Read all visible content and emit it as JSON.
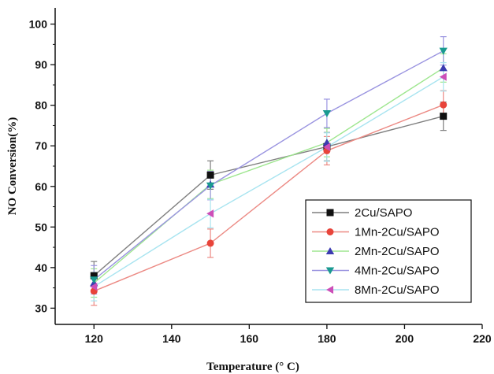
{
  "chart_data": {
    "type": "line",
    "xlabel": "Temperature (° C)",
    "ylabel": "NO Conversion(%)",
    "xlim": [
      110,
      220
    ],
    "ylim": [
      26,
      104
    ],
    "xticks": [
      120,
      140,
      160,
      180,
      200,
      220
    ],
    "yticks": [
      30,
      40,
      50,
      60,
      70,
      80,
      90,
      100
    ],
    "x": [
      120,
      150,
      180,
      210
    ],
    "grid": false,
    "legend_position": "bottom-right",
    "series": [
      {
        "name": "2Cu/SAPO",
        "marker": "square",
        "color": "#111111",
        "line_color": "#7f7f7f",
        "values": [
          38,
          62.8,
          69.8,
          77.3
        ],
        "errors": [
          3.5,
          3.5,
          3.5,
          3.5
        ]
      },
      {
        "name": "1Mn-2Cu/SAPO",
        "marker": "circle",
        "color": "#e8443a",
        "line_color": "#ec8a84",
        "values": [
          34.2,
          46,
          68.8,
          80.1
        ],
        "errors": [
          3.5,
          3.5,
          3.5,
          3.5
        ]
      },
      {
        "name": "2Mn-2Cu/SAPO",
        "marker": "triangle-up",
        "color": "#3b3bb0",
        "line_color": "#9ee68f",
        "values": [
          36.2,
          60.5,
          70.8,
          89.2
        ],
        "errors": [
          3.5,
          3.5,
          3.5,
          3.5
        ]
      },
      {
        "name": "4Mn-2Cu/SAPO",
        "marker": "triangle-down",
        "color": "#1a9a90",
        "line_color": "#9a94e0",
        "values": [
          37,
          60.2,
          78,
          93.4
        ],
        "errors": [
          3.5,
          3.5,
          3.5,
          3.5
        ]
      },
      {
        "name": "8Mn-2Cu/SAPO",
        "marker": "triangle-left",
        "color": "#cc4fb8",
        "line_color": "#a8e4f0",
        "values": [
          35.3,
          53.3,
          69.7,
          87
        ],
        "errors": [
          3.5,
          3.5,
          3.5,
          3.5
        ]
      }
    ]
  }
}
